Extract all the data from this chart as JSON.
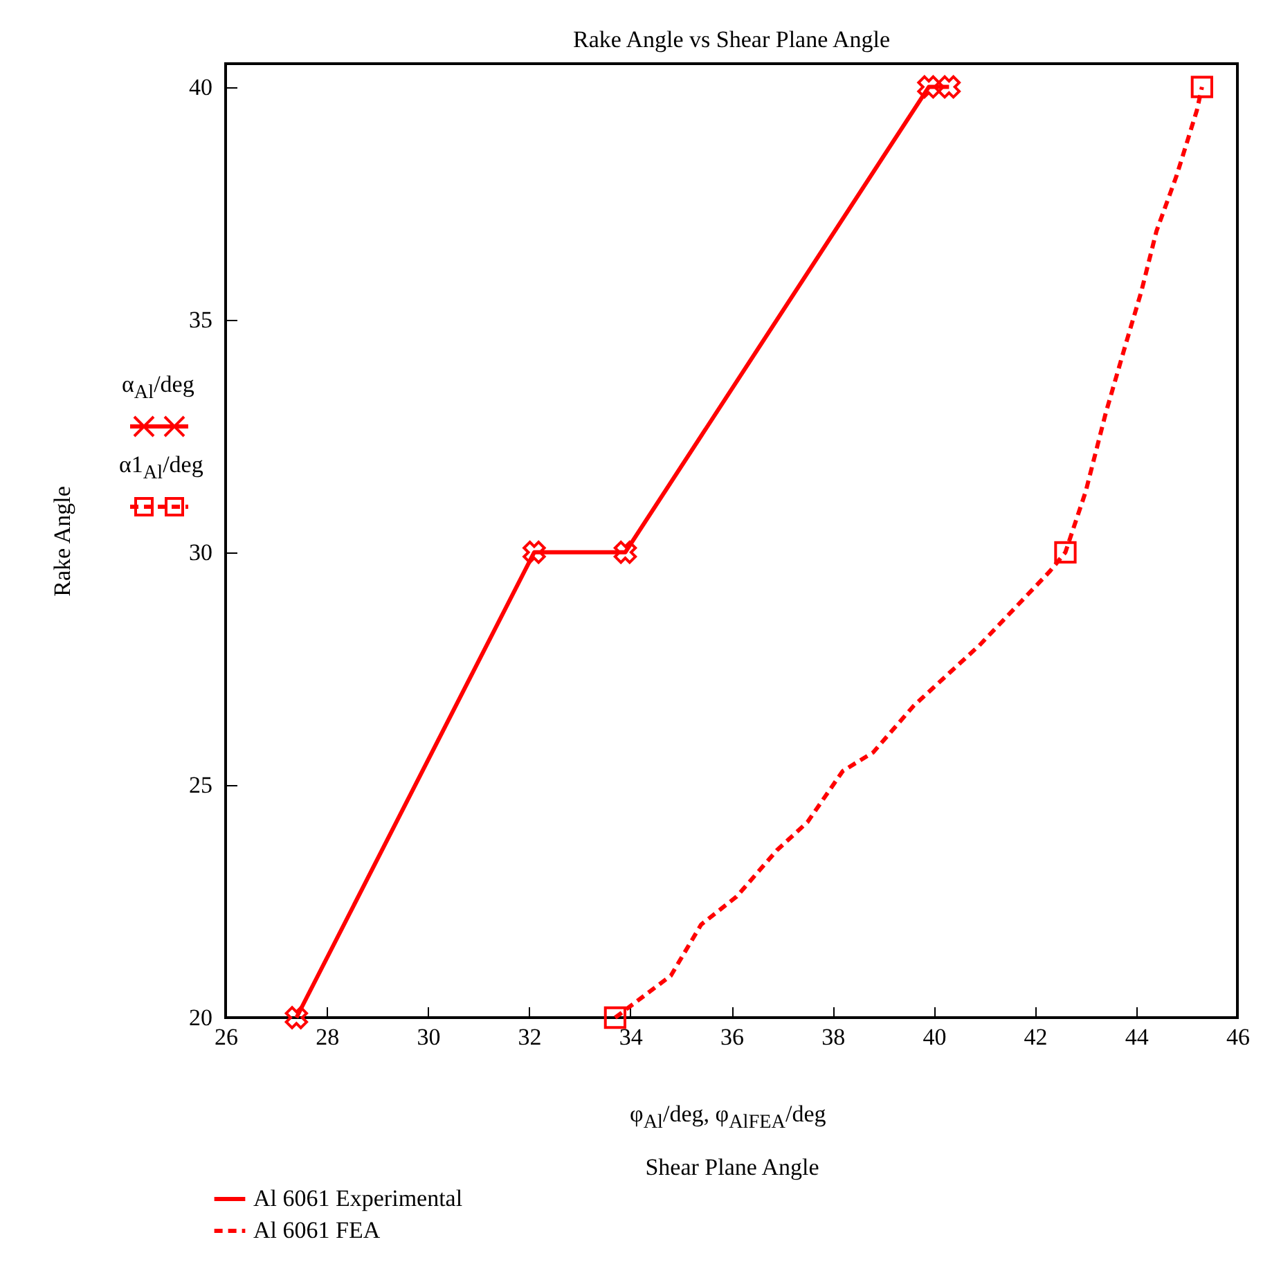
{
  "chart_data": {
    "type": "line",
    "title": "Rake Angle vs Shear Plane Angle",
    "xlabel": "Shear Plane Angle",
    "ylabel": "Rake Angle",
    "annotations": [
      "α$_{Al}$/deg",
      "α1$_{Al}$/deg",
      "φ$_{Al}$/deg, φ$_{AlFEA}$/deg"
    ],
    "xlim": [
      26,
      46
    ],
    "xticks": [
      26,
      28,
      30,
      32,
      34,
      36,
      38,
      40,
      42,
      44,
      46
    ],
    "ylim": [
      20,
      40.5
    ],
    "yticks": [
      20,
      25,
      30,
      35,
      40
    ],
    "grid": false,
    "legend": "bottom left",
    "series": [
      {
        "name": "Al 6061 Experimental",
        "color": "#ff0000",
        "marker": "cross",
        "line_style": "solid",
        "x": [
          27.4,
          32.1,
          33.9,
          39.9,
          40.3
        ],
        "values": [
          20,
          30,
          30,
          40,
          40
        ]
      },
      {
        "name": "Al 6061 FEA",
        "color": "#ff0000",
        "marker": "none",
        "line_style": "dashed",
        "x": [
          33.7,
          34.8,
          35.4,
          36.1,
          36.9,
          37.5,
          38.2,
          38.8,
          39.6,
          40.3,
          40.9,
          41.6,
          42.3,
          42.6,
          43.0,
          43.4,
          43.8,
          44.1,
          44.4,
          44.8,
          45.2,
          45.3
        ],
        "values": [
          20,
          20.9,
          22.0,
          22.6,
          23.6,
          24.2,
          25.3,
          25.7,
          26.7,
          27.4,
          28.0,
          28.8,
          29.6,
          30,
          31.3,
          33.0,
          34.5,
          35.6,
          36.9,
          38.1,
          39.5,
          40
        ]
      },
      {
        "type": "scatter",
        "color": "#ff0000",
        "marker": "square",
        "x": [
          33.7,
          42.6,
          45.3
        ],
        "values": [
          20,
          30,
          40
        ]
      }
    ]
  }
}
